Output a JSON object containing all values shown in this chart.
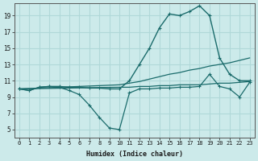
{
  "bg_color": "#cceaea",
  "grid_color": "#b0d8d8",
  "line_color": "#1a6b6b",
  "xlabel": "Humidex (Indice chaleur)",
  "xlim": [
    -0.5,
    23.5
  ],
  "ylim": [
    4.0,
    20.5
  ],
  "xticks": [
    0,
    1,
    2,
    3,
    4,
    5,
    6,
    7,
    8,
    9,
    10,
    11,
    12,
    13,
    14,
    15,
    16,
    17,
    18,
    19,
    20,
    21,
    22,
    23
  ],
  "yticks": [
    5,
    7,
    9,
    11,
    13,
    15,
    17,
    19
  ],
  "series_main": {
    "x": [
      0,
      1,
      2,
      3,
      4,
      5,
      6,
      7,
      8,
      9,
      10,
      11,
      12,
      13,
      14,
      15,
      16,
      17,
      18,
      19,
      20,
      21,
      22,
      23
    ],
    "y": [
      10.0,
      9.8,
      10.2,
      10.3,
      10.3,
      10.2,
      10.2,
      10.1,
      10.1,
      10.0,
      10.0,
      11.0,
      13.0,
      15.0,
      17.5,
      19.2,
      19.0,
      19.5,
      20.2,
      19.0,
      13.8,
      11.8,
      11.0,
      11.0
    ]
  },
  "series_upper": {
    "x": [
      0,
      10,
      11,
      12,
      13,
      14,
      15,
      16,
      17,
      18,
      19,
      20,
      21,
      22,
      23
    ],
    "y": [
      10.0,
      10.5,
      10.7,
      10.9,
      11.2,
      11.5,
      11.8,
      12.0,
      12.3,
      12.5,
      12.8,
      13.0,
      13.2,
      13.5,
      13.8
    ]
  },
  "series_lower": {
    "x": [
      0,
      10,
      11,
      12,
      13,
      14,
      15,
      16,
      17,
      18,
      19,
      20,
      21,
      22,
      23
    ],
    "y": [
      10.0,
      10.2,
      10.2,
      10.3,
      10.3,
      10.4,
      10.4,
      10.5,
      10.5,
      10.5,
      10.6,
      10.7,
      10.7,
      10.8,
      10.9
    ]
  },
  "series_min": {
    "x": [
      0,
      1,
      2,
      3,
      4,
      5,
      6,
      7,
      8,
      9,
      10,
      11,
      12,
      13,
      14,
      15,
      16,
      17,
      18,
      19,
      20,
      21,
      22,
      23
    ],
    "y": [
      10.0,
      9.8,
      10.2,
      10.3,
      10.2,
      9.8,
      9.3,
      8.0,
      6.5,
      5.2,
      5.0,
      9.5,
      10.0,
      10.0,
      10.1,
      10.1,
      10.2,
      10.2,
      10.3,
      11.8,
      10.3,
      10.0,
      9.0,
      10.8
    ]
  }
}
